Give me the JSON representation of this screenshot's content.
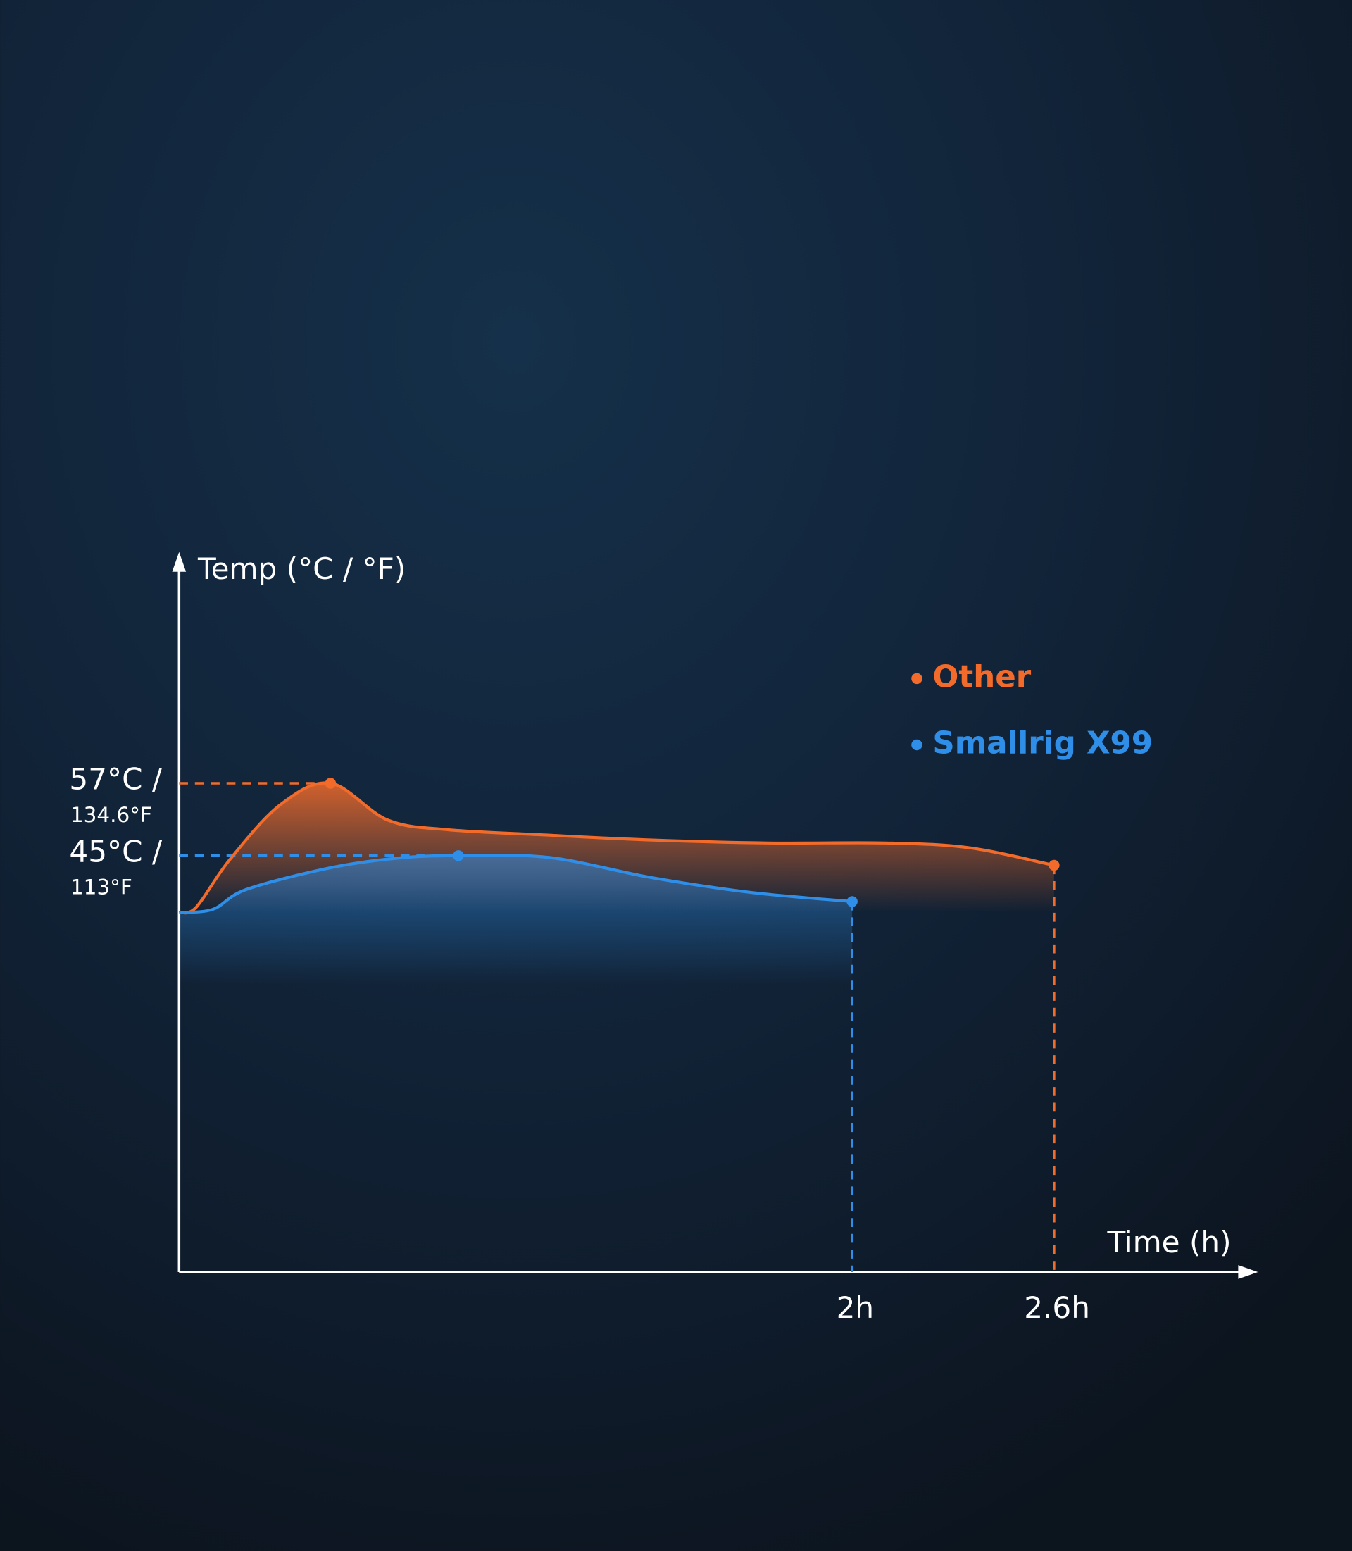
{
  "chart_data": {
    "type": "line",
    "y_label": "Temp (°C / °F)",
    "x_label": "Time (h)",
    "xlim": [
      0,
      3.2
    ],
    "ylim": [
      -24,
      95
    ],
    "xticks": [
      {
        "value": 2,
        "label": "2h"
      },
      {
        "value": 2.6,
        "label": "2.6h"
      }
    ],
    "yticks": [
      {
        "value": 45,
        "label": "45°C /"
      },
      {
        "value": 57,
        "label": "57°C /"
      }
    ],
    "ytick_sublabels": [
      "113°F",
      "134.6°F"
    ],
    "legend": "top-right",
    "series": [
      {
        "name": "Other",
        "color": "#f26b2a",
        "x": [
          0,
          0.05,
          0.15,
          0.3,
          0.45,
          0.62,
          0.8,
          1.1,
          1.4,
          1.75,
          2.1,
          2.35,
          2.6
        ],
        "values": [
          35.6,
          36.4,
          44.3,
          53.4,
          57,
          50.9,
          49.3,
          48.4,
          47.6,
          47.1,
          47.1,
          46.3,
          43.4
        ]
      },
      {
        "name": "Smallrig X99",
        "color": "#2f8fe8",
        "x": [
          0,
          0.1,
          0.2,
          0.45,
          0.65,
          0.83,
          1.1,
          1.4,
          1.7,
          2.0
        ],
        "values": [
          35.6,
          36.1,
          39.4,
          43.0,
          44.6,
          45,
          44.7,
          41.4,
          38.9,
          37.4
        ]
      }
    ]
  }
}
